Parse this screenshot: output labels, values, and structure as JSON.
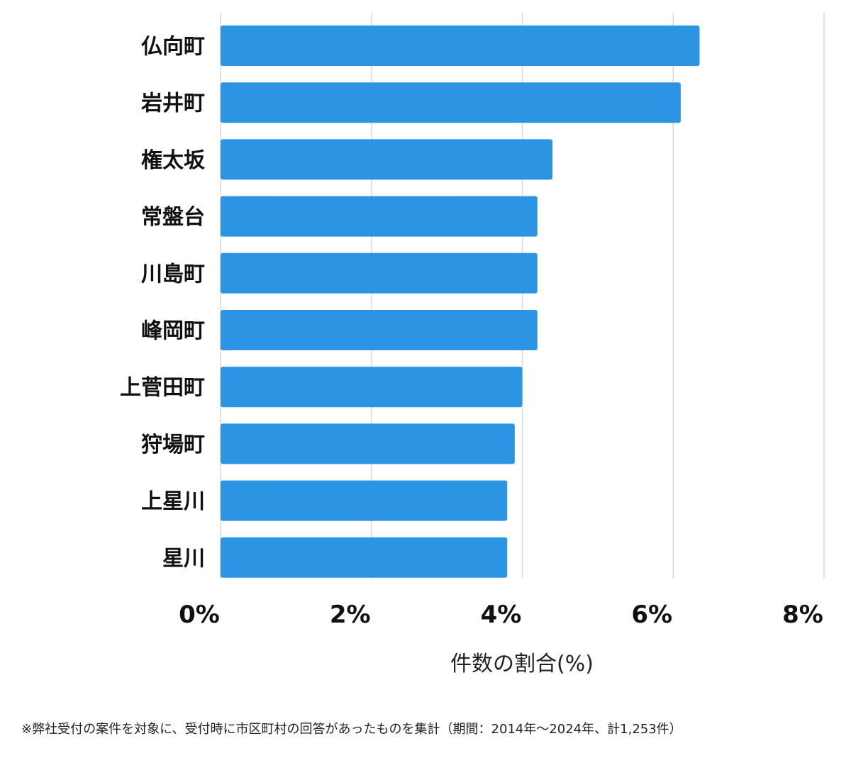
{
  "chart_data": {
    "type": "bar",
    "orientation": "horizontal",
    "categories": [
      "仏向町",
      "岩井町",
      "権太坂",
      "常盤台",
      "川島町",
      "峰岡町",
      "上菅田町",
      "狩場町",
      "上星川",
      "星川"
    ],
    "values": [
      6.35,
      6.1,
      4.4,
      4.2,
      4.2,
      4.2,
      4.0,
      3.9,
      3.8,
      3.8
    ],
    "xlabel": "件数の割合(%)",
    "xlim": [
      0,
      8
    ],
    "xticks": [
      "0%",
      "2%",
      "4%",
      "6%",
      "8%"
    ],
    "grid": true,
    "bar_color": "#2b95e4"
  },
  "footnote": "※弊社受付の案件を対象に、受付時に市区町村の回答があったものを集計（期間：2014年～2024年、計1,253件）"
}
